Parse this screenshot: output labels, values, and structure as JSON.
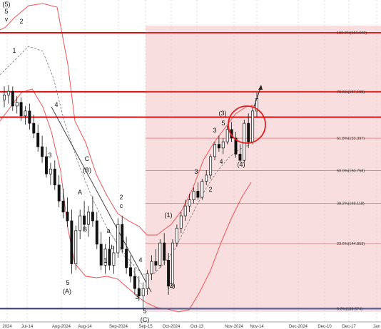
{
  "chart_data": {
    "type": "candlestick",
    "x_axis": {
      "ticks": [
        "2024",
        "Jul-14",
        "Aug-2024",
        "Aug-14",
        "Sep-2024",
        "Sep-15",
        "Oct-2024",
        "Oct-13",
        "Nov-2024",
        "Nov-14",
        "Dec-2024",
        "Dec-10",
        "Dec-17",
        "Jan"
      ]
    },
    "y_axis": {
      "range": [
        138.5,
        164.6
      ],
      "scale": "linear"
    },
    "fibonacci_levels": [
      {
        "label": "100.0%(161.942)",
        "value": 161.942
      },
      {
        "label": "78.6%(157.155)",
        "value": 157.155
      },
      {
        "label": "61.8%(153.397)",
        "value": 153.397
      },
      {
        "label": "50.0%(150.758)",
        "value": 150.758
      },
      {
        "label": "38.2%(148.118)",
        "value": 148.118
      },
      {
        "label": "23.6%(144.853)",
        "value": 144.853
      },
      {
        "label": "0.0%(139.574)",
        "value": 139.574
      }
    ],
    "horizontal_lines": [
      {
        "value": 161.942,
        "color": "#dd1111"
      },
      {
        "value": 157.155,
        "color": "#dd1111"
      },
      {
        "value": 155.1,
        "color": "#dd1111"
      },
      {
        "value": 139.574,
        "color": "#2a3a7a"
      }
    ],
    "wave_labels": [
      "(5)",
      "5",
      "v",
      "2",
      "1",
      "3",
      "4",
      "5",
      "(A)",
      "(B)",
      "C",
      "A",
      "B",
      "a",
      "b",
      "1",
      "c",
      "2",
      "4",
      "3",
      "5",
      "(C)",
      "(1)",
      "(2)",
      "3",
      "2",
      "(3)",
      "5",
      "4",
      "3",
      "(4)"
    ],
    "candles": [
      [
        156.5,
        157.6,
        155.9,
        156.9
      ],
      [
        156.9,
        157.7,
        156.2,
        157.2
      ],
      [
        157.2,
        157.6,
        155.6,
        156.0
      ],
      [
        156.0,
        156.8,
        155.4,
        156.3
      ],
      [
        156.3,
        156.7,
        154.8,
        155.2
      ],
      [
        155.2,
        156.0,
        154.5,
        155.6
      ],
      [
        155.6,
        156.2,
        154.1,
        154.6
      ],
      [
        154.6,
        155.3,
        153.4,
        153.8
      ],
      [
        153.8,
        154.5,
        152.3,
        152.7
      ],
      [
        152.7,
        153.6,
        151.4,
        151.9
      ],
      [
        151.9,
        152.7,
        150.2,
        150.5
      ],
      [
        150.5,
        151.4,
        149.6,
        150.9
      ],
      [
        150.9,
        151.6,
        149.2,
        149.6
      ],
      [
        149.6,
        150.4,
        147.8,
        148.3
      ],
      [
        148.3,
        149.3,
        146.9,
        147.4
      ],
      [
        147.4,
        148.6,
        146.2,
        146.7
      ],
      [
        146.7,
        147.6,
        142.4,
        143.2
      ],
      [
        143.2,
        146.3,
        142.7,
        145.9
      ],
      [
        145.9,
        147.6,
        145.2,
        147.1
      ],
      [
        147.1,
        148.3,
        145.9,
        146.4
      ],
      [
        146.4,
        147.9,
        145.4,
        147.4
      ],
      [
        147.4,
        148.7,
        146.2,
        146.7
      ],
      [
        146.7,
        147.4,
        144.4,
        144.8
      ],
      [
        144.8,
        145.8,
        142.7,
        143.1
      ],
      [
        143.1,
        144.8,
        142.4,
        144.4
      ],
      [
        144.4,
        145.4,
        142.7,
        143.1
      ],
      [
        143.1,
        144.6,
        142.4,
        144.1
      ],
      [
        144.1,
        146.9,
        143.7,
        146.4
      ],
      [
        146.4,
        147.1,
        144.1,
        144.4
      ],
      [
        144.4,
        145.4,
        142.4,
        142.9
      ],
      [
        142.9,
        143.9,
        141.7,
        142.2
      ],
      [
        142.2,
        142.9,
        140.7,
        141.2
      ],
      [
        141.2,
        142.2,
        140.2,
        140.6
      ],
      [
        140.6,
        141.7,
        139.6,
        141.2
      ],
      [
        141.2,
        142.7,
        140.7,
        142.4
      ],
      [
        142.4,
        143.9,
        141.9,
        143.4
      ],
      [
        143.4,
        144.4,
        142.6,
        143.1
      ],
      [
        143.1,
        145.2,
        142.9,
        144.9
      ],
      [
        144.9,
        145.7,
        143.1,
        143.5
      ],
      [
        143.5,
        144.1,
        140.7,
        141.4
      ],
      [
        141.4,
        145.2,
        141.2,
        144.9
      ],
      [
        144.9,
        146.4,
        144.6,
        146.1
      ],
      [
        146.1,
        147.4,
        145.7,
        147.1
      ],
      [
        147.1,
        148.4,
        146.7,
        147.9
      ],
      [
        147.9,
        148.9,
        147.4,
        148.4
      ],
      [
        148.4,
        149.4,
        148.1,
        149.1
      ],
      [
        149.1,
        149.8,
        148.4,
        148.6
      ],
      [
        148.6,
        150.1,
        148.4,
        149.9
      ],
      [
        149.9,
        150.8,
        149.6,
        150.4
      ],
      [
        150.4,
        152.1,
        150.1,
        151.9
      ],
      [
        151.9,
        153.1,
        151.6,
        152.9
      ],
      [
        152.9,
        153.6,
        152.3,
        152.6
      ],
      [
        152.6,
        153.4,
        152.1,
        153.1
      ],
      [
        153.1,
        154.4,
        152.9,
        154.1
      ],
      [
        154.1,
        154.7,
        153.1,
        153.4
      ],
      [
        153.4,
        153.9,
        151.8,
        152.1
      ],
      [
        152.1,
        152.9,
        151.4,
        151.6
      ],
      [
        151.6,
        154.9,
        151.4,
        154.6
      ],
      [
        154.6,
        155.4,
        152.6,
        153.1
      ],
      [
        153.1,
        155.9,
        152.9,
        155.6
      ],
      [
        155.6,
        157.1,
        155.1,
        156.6
      ]
    ]
  }
}
